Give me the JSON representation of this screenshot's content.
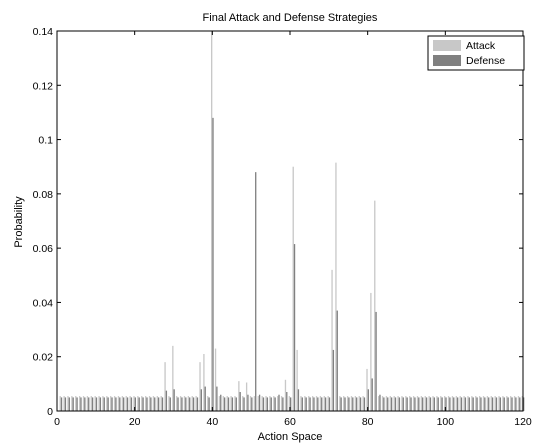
{
  "chart_data": {
    "type": "bar",
    "title": "Final Attack and Defense Strategies",
    "xlabel": "Action Space",
    "ylabel": "Probability",
    "xlim": [
      0,
      120
    ],
    "ylim": [
      0,
      0.14
    ],
    "xticks": [
      0,
      20,
      40,
      60,
      80,
      100,
      120
    ],
    "yticks": [
      0,
      0.02,
      0.04,
      0.06,
      0.08,
      0.1,
      0.12,
      0.14
    ],
    "xtick_labels": [
      "0",
      "20",
      "40",
      "60",
      "80",
      "100",
      "120"
    ],
    "ytick_labels": [
      "0",
      "0.02",
      "0.04",
      "0.06",
      "0.08",
      "0.1",
      "0.12",
      "0.14"
    ],
    "grid": false,
    "legend_position": "top-right",
    "x": [
      1,
      2,
      3,
      4,
      5,
      6,
      7,
      8,
      9,
      10,
      11,
      12,
      13,
      14,
      15,
      16,
      17,
      18,
      19,
      20,
      21,
      22,
      23,
      24,
      25,
      26,
      27,
      28,
      29,
      30,
      31,
      32,
      33,
      34,
      35,
      36,
      37,
      38,
      39,
      40,
      41,
      42,
      43,
      44,
      45,
      46,
      47,
      48,
      49,
      50,
      51,
      52,
      53,
      54,
      55,
      56,
      57,
      58,
      59,
      60,
      61,
      62,
      63,
      64,
      65,
      66,
      67,
      68,
      69,
      70,
      71,
      72,
      73,
      74,
      75,
      76,
      77,
      78,
      79,
      80,
      81,
      82,
      83,
      84,
      85,
      86,
      87,
      88,
      89,
      90,
      91,
      92,
      93,
      94,
      95,
      96,
      97,
      98,
      99,
      100,
      101,
      102,
      103,
      104,
      105,
      106,
      107,
      108,
      109,
      110,
      111,
      112,
      113,
      114,
      115,
      116,
      117,
      118,
      119,
      120
    ],
    "series": [
      {
        "name": "Attack",
        "color": "#c8c8c8",
        "values": [
          0.0055,
          0.0055,
          0.0055,
          0.0055,
          0.0055,
          0.0055,
          0.0055,
          0.0055,
          0.0055,
          0.0055,
          0.0055,
          0.0055,
          0.0055,
          0.0055,
          0.0055,
          0.0055,
          0.0055,
          0.0055,
          0.0055,
          0.0055,
          0.0055,
          0.0055,
          0.0055,
          0.0055,
          0.0055,
          0.0055,
          0.0055,
          0.018,
          0.0055,
          0.024,
          0.0055,
          0.0055,
          0.0055,
          0.0055,
          0.0055,
          0.0055,
          0.018,
          0.021,
          0.0055,
          0.14,
          0.023,
          0.0055,
          0.0055,
          0.0055,
          0.0055,
          0.0055,
          0.011,
          0.0055,
          0.0105,
          0.0055,
          0.0055,
          0.0055,
          0.0055,
          0.0055,
          0.0055,
          0.0055,
          0.0055,
          0.0055,
          0.0115,
          0.0055,
          0.09,
          0.0225,
          0.0055,
          0.0055,
          0.0055,
          0.0055,
          0.0055,
          0.0055,
          0.0055,
          0.0055,
          0.052,
          0.0915,
          0.0055,
          0.0055,
          0.0055,
          0.0055,
          0.0055,
          0.0055,
          0.0055,
          0.0155,
          0.0435,
          0.0775,
          0.0055,
          0.0055,
          0.0055,
          0.0055,
          0.0055,
          0.0055,
          0.0055,
          0.0055,
          0.0055,
          0.0055,
          0.0055,
          0.0055,
          0.0055,
          0.0055,
          0.0055,
          0.0055,
          0.0055,
          0.0055,
          0.0055,
          0.0055,
          0.0055,
          0.0055,
          0.0055,
          0.0055,
          0.0055,
          0.0055,
          0.0055,
          0.0055,
          0.0055,
          0.0055,
          0.0055,
          0.0055,
          0.0055,
          0.0055,
          0.0055,
          0.0055,
          0.0055,
          0.0055
        ]
      },
      {
        "name": "Defense",
        "color": "#808080",
        "values": [
          0.005,
          0.005,
          0.005,
          0.005,
          0.005,
          0.005,
          0.005,
          0.005,
          0.005,
          0.005,
          0.005,
          0.005,
          0.005,
          0.005,
          0.005,
          0.005,
          0.005,
          0.005,
          0.005,
          0.005,
          0.005,
          0.005,
          0.005,
          0.005,
          0.005,
          0.005,
          0.005,
          0.0075,
          0.005,
          0.008,
          0.005,
          0.005,
          0.005,
          0.005,
          0.005,
          0.005,
          0.008,
          0.009,
          0.005,
          0.108,
          0.009,
          0.006,
          0.005,
          0.005,
          0.005,
          0.005,
          0.007,
          0.005,
          0.006,
          0.005,
          0.088,
          0.006,
          0.005,
          0.005,
          0.005,
          0.005,
          0.006,
          0.005,
          0.007,
          0.005,
          0.0615,
          0.008,
          0.005,
          0.005,
          0.005,
          0.005,
          0.005,
          0.005,
          0.005,
          0.005,
          0.0225,
          0.037,
          0.005,
          0.005,
          0.005,
          0.005,
          0.005,
          0.005,
          0.005,
          0.008,
          0.012,
          0.0365,
          0.006,
          0.005,
          0.005,
          0.005,
          0.005,
          0.005,
          0.005,
          0.005,
          0.005,
          0.005,
          0.005,
          0.005,
          0.005,
          0.005,
          0.005,
          0.005,
          0.005,
          0.005,
          0.005,
          0.005,
          0.005,
          0.005,
          0.005,
          0.005,
          0.005,
          0.005,
          0.005,
          0.005,
          0.005,
          0.005,
          0.005,
          0.005,
          0.005,
          0.005,
          0.005,
          0.005,
          0.005,
          0.005
        ]
      }
    ]
  }
}
